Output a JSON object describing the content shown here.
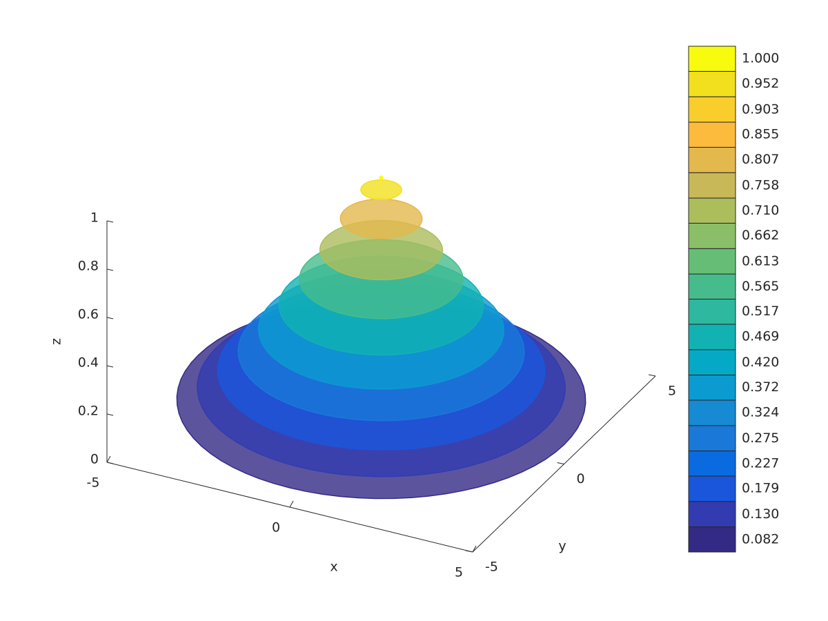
{
  "chart_data": {
    "type": "surface",
    "xlabel": "x",
    "ylabel": "y",
    "zlabel": "z",
    "xlim": [
      -5,
      5
    ],
    "xticks": [
      -5,
      0,
      5
    ],
    "ylim": [
      -5,
      5
    ],
    "yticks": [
      -5,
      0,
      5
    ],
    "zlim": [
      0,
      1
    ],
    "zticks": [
      0,
      0.2,
      0.4,
      0.6,
      0.8,
      1
    ],
    "surface": {
      "r": [
        5,
        4.5,
        4,
        3.5,
        3,
        2.5,
        2,
        1.5,
        1,
        0.5,
        0
      ],
      "z": [
        0.08,
        0.13,
        0.2,
        0.28,
        0.37,
        0.47,
        0.58,
        0.7,
        0.83,
        0.95,
        1.0
      ]
    },
    "colorbar": {
      "clim": [
        0.058,
        1.024
      ],
      "ticks": [
        0.082,
        {
          "value": 0.13,
          "label": "0.130"
        },
        0.179,
        0.227,
        0.275,
        0.324,
        0.372,
        {
          "value": 0.42,
          "label": "0.420"
        },
        0.469,
        0.517,
        0.565,
        0.613,
        0.662,
        {
          "value": 0.71,
          "label": "0.710"
        },
        0.758,
        0.807,
        0.855,
        0.903,
        0.952,
        {
          "value": 1.0,
          "label": "1.000"
        }
      ],
      "colors": [
        "#332a86",
        "#323cb0",
        "#1a56dc",
        "#0a6be0",
        "#1a78d8",
        "#168ad2",
        "#0b9bd0",
        "#06a9c5",
        "#12b2b3",
        "#2eb8a0",
        "#46bc8c",
        "#66be76",
        "#8bbe68",
        "#acbd5c",
        "#c8b858",
        "#e3b84c",
        "#fcbb3d",
        "#f9cd2c",
        "#f2e01f",
        "#f9fb0e"
      ]
    }
  }
}
